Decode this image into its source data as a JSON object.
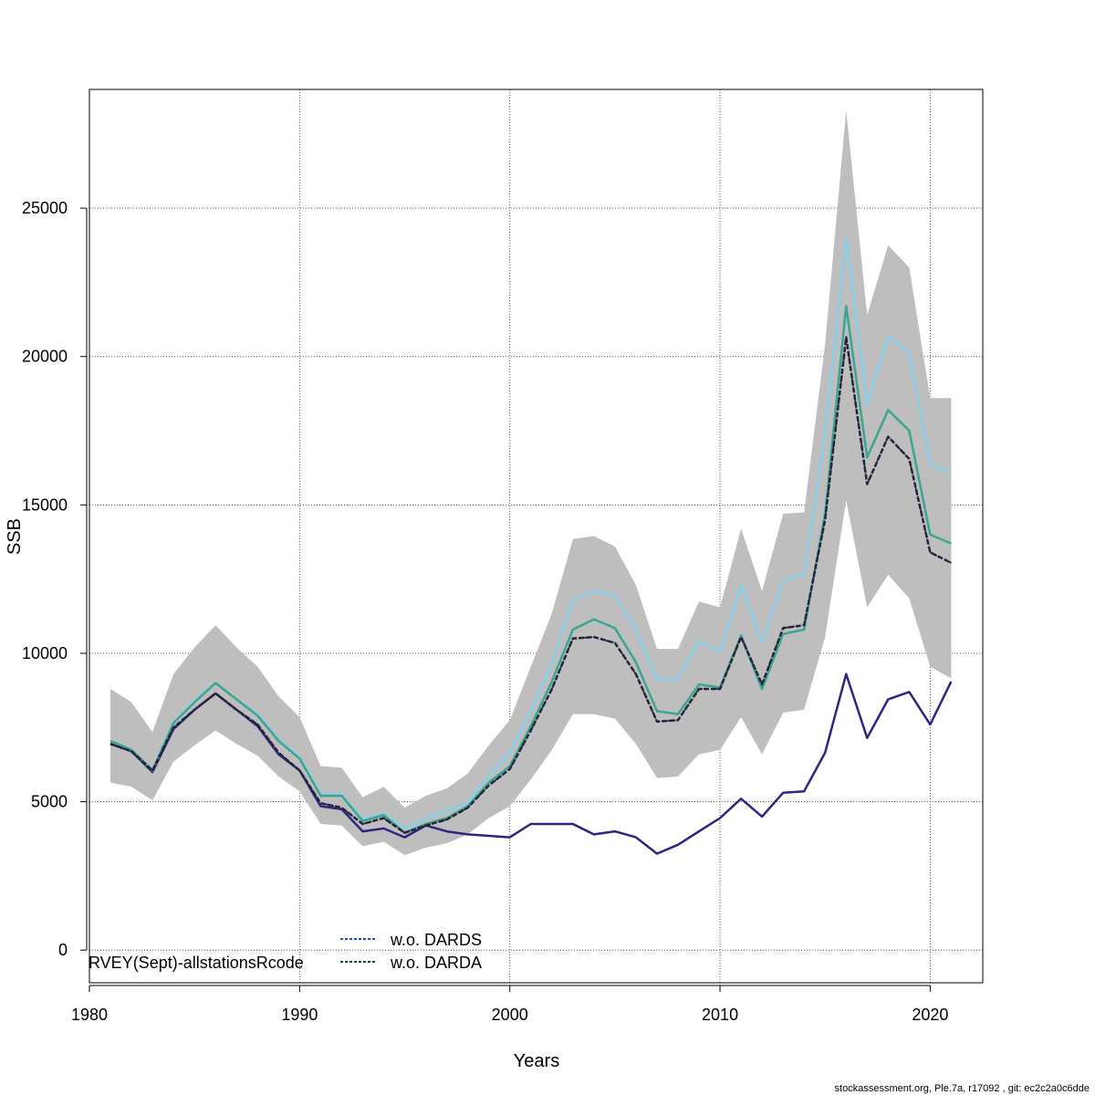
{
  "chart_data": {
    "type": "line",
    "xlabel": "Years",
    "ylabel": "SSB",
    "xlim": [
      1980,
      2022.5
    ],
    "ylim": [
      -1100,
      29000
    ],
    "x_ticks": [
      1980,
      1990,
      2000,
      2010,
      2020
    ],
    "y_ticks": [
      0,
      5000,
      10000,
      15000,
      20000,
      25000
    ],
    "grid": true,
    "x": [
      1981,
      1982,
      1983,
      1984,
      1985,
      1986,
      1987,
      1988,
      1989,
      1990,
      1991,
      1992,
      1993,
      1994,
      1995,
      1996,
      1997,
      1998,
      1999,
      2000,
      2001,
      2002,
      2003,
      2004,
      2005,
      2006,
      2007,
      2008,
      2009,
      2010,
      2011,
      2012,
      2013,
      2014,
      2015,
      2016,
      2017,
      2018,
      2019,
      2020,
      2021
    ],
    "band": {
      "color": "#bebebe",
      "upper": [
        8800,
        8350,
        7350,
        9300,
        10200,
        10950,
        10200,
        9550,
        8550,
        7850,
        6200,
        6150,
        5150,
        5500,
        4800,
        5200,
        5450,
        5950,
        6900,
        7750,
        9550,
        11350,
        13850,
        13950,
        13600,
        12300,
        10150,
        10150,
        11750,
        11550,
        14200,
        12100,
        14700,
        14750,
        20400,
        28300,
        21400,
        23750,
        23000,
        18600,
        18600
      ],
      "lower": [
        5650,
        5500,
        5050,
        6350,
        6900,
        7400,
        6950,
        6550,
        5850,
        5350,
        4250,
        4200,
        3500,
        3650,
        3200,
        3450,
        3600,
        3900,
        4450,
        4850,
        5750,
        6750,
        7950,
        7950,
        7800,
        6950,
        5800,
        5850,
        6600,
        6750,
        7850,
        6600,
        8000,
        8100,
        10550,
        15150,
        11550,
        12650,
        11850,
        9550,
        9150
      ]
    },
    "series": [
      {
        "name": "",
        "color": "#87ceeb",
        "dashed": false,
        "values": [
          7050,
          6750,
          6050,
          7650,
          8400,
          9000,
          8450,
          7950,
          7100,
          6500,
          5250,
          5250,
          4400,
          4600,
          4100,
          4450,
          4700,
          4950,
          5900,
          6650,
          8050,
          9650,
          11800,
          12100,
          11950,
          10800,
          9100,
          9150,
          10400,
          10050,
          12300,
          10350,
          12450,
          12650,
          17400,
          24000,
          18350,
          20700,
          20100,
          16350,
          16100
        ]
      },
      {
        "name": "",
        "color": "#3aa68f",
        "dashed": false,
        "values": [
          7050,
          6750,
          6050,
          7650,
          8350,
          9000,
          8450,
          7900,
          7050,
          6450,
          5200,
          5200,
          4350,
          4550,
          3950,
          4250,
          4450,
          4850,
          5650,
          6200,
          7550,
          9050,
          10800,
          11150,
          10850,
          9700,
          8050,
          7950,
          8950,
          8850,
          10600,
          8800,
          10650,
          10800,
          14700,
          21700,
          16600,
          18200,
          17500,
          14000,
          13700
        ]
      },
      {
        "name": "w.o. DARDS",
        "color": "#1b1b5a",
        "dashed": true,
        "values": [
          6950,
          6700,
          6050,
          7500,
          8100,
          8650,
          8100,
          7600,
          6650,
          6050,
          4950,
          4800,
          4250,
          4450,
          3950,
          4200,
          4400,
          4800,
          5550,
          6100,
          7400,
          8800,
          10500,
          10550,
          10350,
          9300,
          7700,
          7750,
          8800,
          8800,
          10550,
          8950,
          10850,
          10950,
          14500,
          20650,
          15700,
          17300,
          16550,
          13400,
          13050
        ]
      },
      {
        "name": "w.o. DARDA",
        "color": "#2a2a2a",
        "dashed": true,
        "values": [
          6950,
          6700,
          6050,
          7500,
          8100,
          8650,
          8100,
          7600,
          6650,
          6050,
          4950,
          4800,
          4250,
          4450,
          3950,
          4200,
          4400,
          4800,
          5550,
          6100,
          7400,
          8800,
          10500,
          10550,
          10350,
          9300,
          7700,
          7750,
          8800,
          8800,
          10550,
          8950,
          10850,
          10950,
          14500,
          20650,
          15700,
          17300,
          16550,
          13400,
          13050
        ]
      },
      {
        "name": "",
        "color": "#2e2580",
        "dashed": false,
        "values": [
          6950,
          6700,
          6000,
          7450,
          8100,
          8650,
          8100,
          7550,
          6600,
          6050,
          4850,
          4750,
          4000,
          4100,
          3800,
          4200,
          4000,
          3900,
          3850,
          3800,
          4250,
          4250,
          4250,
          3900,
          4000,
          3800,
          3250,
          3550,
          4000,
          4450,
          5100,
          4500,
          5300,
          5350,
          6650,
          9300,
          7150,
          8450,
          8700,
          7600,
          9050
        ]
      }
    ],
    "legend": {
      "placement": "bottom-left",
      "entries": [
        {
          "label": "w.o. DARDS",
          "color": "#1a4fb5",
          "dashed": true
        },
        {
          "label": "w.o. DARDA",
          "color": "#1a4a3a",
          "dashed": true
        }
      ]
    },
    "annotation": "RVEY(Sept)-allstationsRcode"
  },
  "footer": "stockassessment.org, Ple.7a, r17092 , git: ec2c2a0c6dde"
}
